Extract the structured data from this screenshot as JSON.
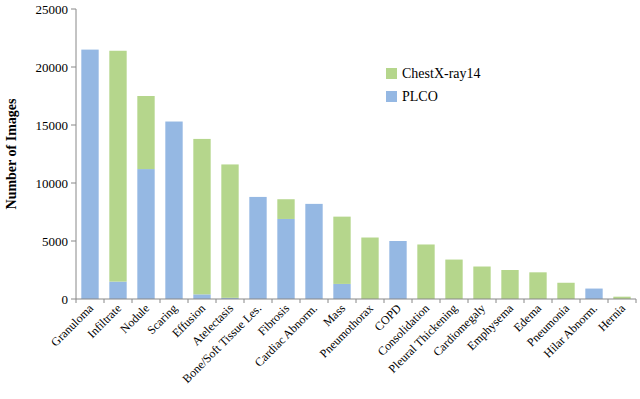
{
  "chart_data": {
    "type": "bar",
    "stacked": true,
    "grid": false,
    "legend": "upper right",
    "y_label": "Number of Images",
    "categories": [
      "Granuloma",
      "Infiltrate",
      "Nodule",
      "Scaring",
      "Effusion",
      "Atelectasis",
      "Bone/Soft Tissue Les.",
      "Fibrosis",
      "Cardiac Abnorm.",
      "Mass",
      "Pneumothorax",
      "COPD",
      "Consolidation",
      "Pleural Thickening",
      "Cardiomegaly",
      "Emphysema",
      "Edema",
      "Pneumonia",
      "Hilar Abnorm.",
      "Hernia"
    ],
    "series": [
      {
        "name": "PLCO",
        "color": "#95b8e3",
        "values": [
          21500,
          1500,
          11200,
          15300,
          400,
          100,
          8800,
          6900,
          8200,
          1300,
          0,
          5000,
          0,
          0,
          0,
          0,
          0,
          0,
          900,
          0
        ]
      },
      {
        "name": "ChestX-ray14",
        "color": "#b5d68c",
        "values": [
          0,
          19900,
          6300,
          0,
          13400,
          11500,
          0,
          1700,
          0,
          5800,
          5300,
          0,
          4700,
          3400,
          2800,
          2500,
          2300,
          1400,
          0,
          200
        ]
      }
    ],
    "ylim": [
      0,
      25000
    ],
    "yticks": [
      0,
      5000,
      10000,
      15000,
      20000,
      25000
    ]
  }
}
